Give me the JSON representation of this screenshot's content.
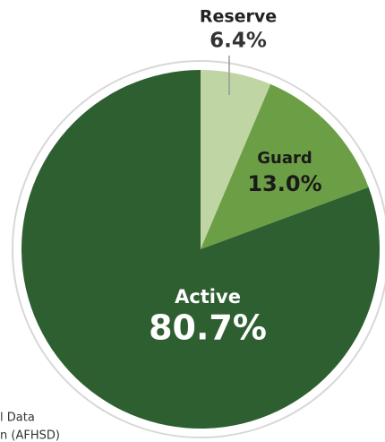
{
  "chart_data": {
    "type": "pie",
    "categories": [
      "Reserve",
      "Guard",
      "Active"
    ],
    "values": [
      6.4,
      13.0,
      80.7
    ],
    "value_labels": [
      "6.4%",
      "13.0%",
      "80.7%"
    ],
    "colors": [
      "#c0d5a4",
      "#6c9f45",
      "#2e5f31"
    ],
    "source_lines": [
      "l Data",
      "n (AFHSD)"
    ]
  }
}
